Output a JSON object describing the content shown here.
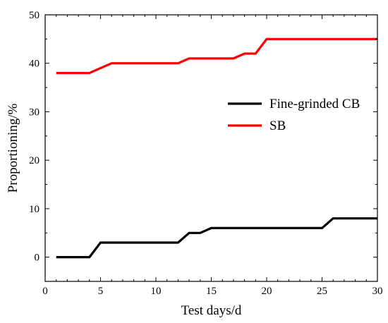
{
  "chart_data": {
    "type": "line",
    "title": "",
    "xlabel": "Test days/d",
    "ylabel": "Proportioning/%",
    "xlim": [
      0,
      30
    ],
    "ylim": [
      -5,
      50
    ],
    "x_ticks": [
      0,
      5,
      10,
      15,
      20,
      25,
      30
    ],
    "y_ticks": [
      0,
      10,
      20,
      30,
      40,
      50
    ],
    "grid": false,
    "legend_position": "right",
    "series": [
      {
        "name": "Fine-grinded CB",
        "color": "#000000",
        "x": [
          1,
          4,
          5,
          12,
          13,
          14,
          15,
          25,
          26,
          30
        ],
        "y": [
          0,
          0,
          3,
          3,
          5,
          5,
          6,
          6,
          8,
          8
        ]
      },
      {
        "name": "SB",
        "color": "#ff0000",
        "x": [
          1,
          4,
          6,
          12,
          13,
          17,
          18,
          19,
          20,
          30
        ],
        "y": [
          38,
          38,
          40,
          40,
          41,
          41,
          42,
          42,
          45,
          45
        ]
      }
    ]
  }
}
